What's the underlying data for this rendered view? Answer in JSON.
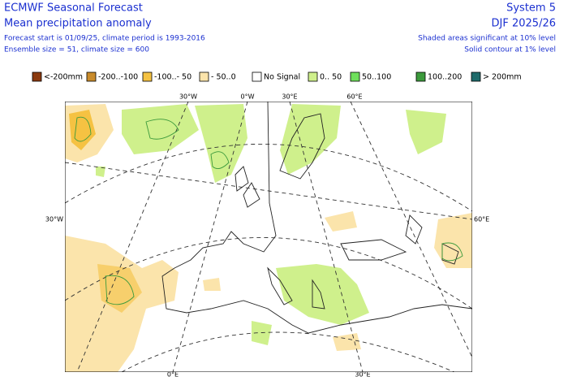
{
  "header": {
    "title": "ECMWF Seasonal Forecast",
    "subtitle": "Mean precipitation anomaly",
    "line1": "Forecast start is 01/09/25, climate period is 1993-2016",
    "line2": "Ensemble size = 51, climate size = 600",
    "system": "System 5",
    "season": "DJF 2025/26",
    "note1": "Shaded areas significant at 10% level",
    "note2": "Solid contour at 1% level"
  },
  "legend": [
    {
      "label": "<-200mm",
      "color": "#8b3a0f"
    },
    {
      "label": "-200..-100",
      "color": "#c98b2b"
    },
    {
      "label": "-100..- 50",
      "color": "#f5c242"
    },
    {
      "label": "- 50..0",
      "color": "#fbe4ab"
    },
    {
      "label": "No Signal",
      "color": "#ffffff"
    },
    {
      "label": "0.. 50",
      "color": "#cff08c"
    },
    {
      "label": "50..100",
      "color": "#6fe05c"
    },
    {
      "label": "100..200",
      "color": "#3c9a3c"
    },
    {
      "label": "> 200mm",
      "color": "#1f6b6b"
    }
  ],
  "map": {
    "labels": [
      "30°W",
      "0°W",
      "30°E",
      "60°E",
      "30°W",
      "60°E",
      "0°E",
      "30°E"
    ]
  }
}
